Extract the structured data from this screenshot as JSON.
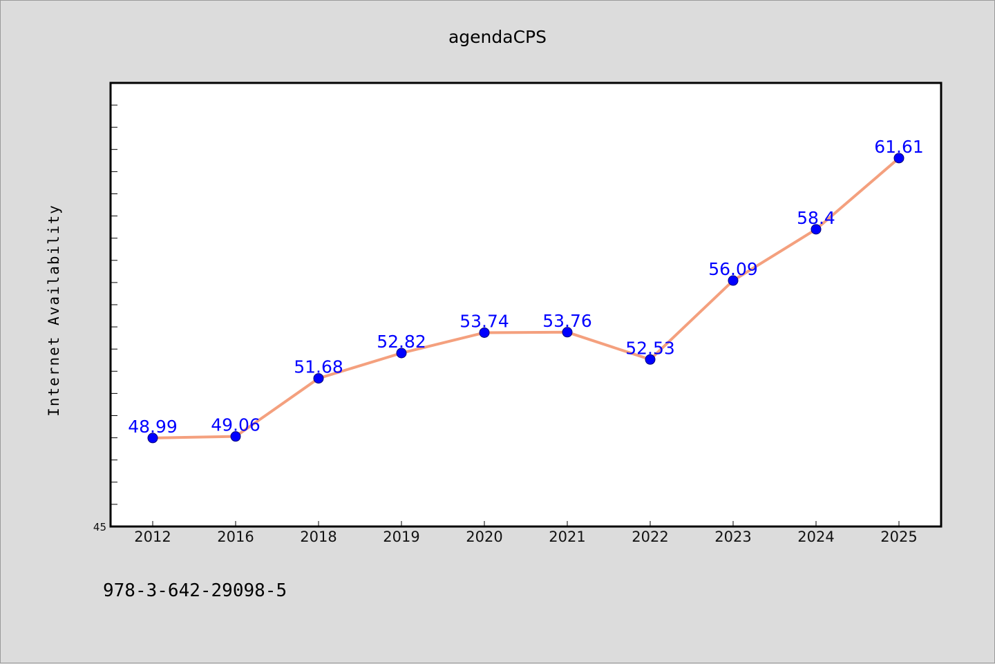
{
  "chart_data": {
    "type": "line",
    "title": "agendaCPS",
    "xlabel": "",
    "ylabel": "Internet Availability",
    "categories": [
      "2012",
      "2016",
      "2018",
      "2019",
      "2020",
      "2021",
      "2022",
      "2023",
      "2024",
      "2025"
    ],
    "series": [
      {
        "values": [
          48.99,
          49.06,
          51.68,
          52.82,
          53.74,
          53.76,
          52.53,
          56.09,
          58.4,
          61.61
        ],
        "labels": [
          "48.99",
          "49.06",
          "51.68",
          "52.82",
          "53.74",
          "53.76",
          "52.53",
          "56.09",
          "58.4",
          "61.61"
        ],
        "line_color": "#f4a07e",
        "marker_color": "#0000ff"
      }
    ],
    "ylim": [
      45,
      65
    ],
    "yticks_labeled": [
      "45"
    ],
    "grid": false,
    "legend": "none"
  },
  "footer_text": "978-3-642-29098-5"
}
